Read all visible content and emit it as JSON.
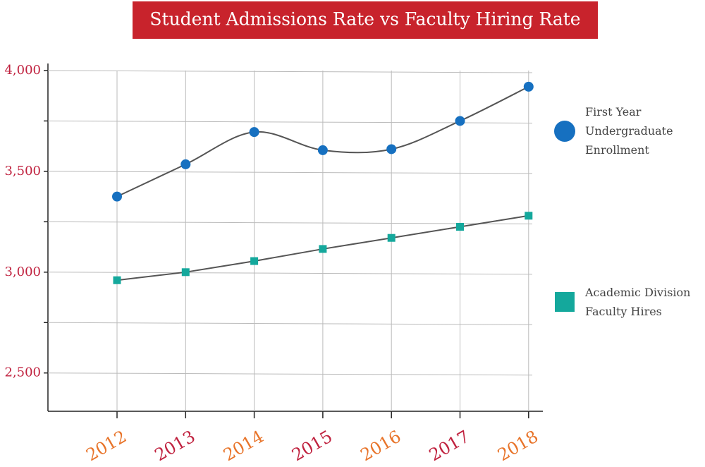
{
  "chart_data": {
    "type": "line",
    "title": "Student Admissions Rate vs Faculty Hiring Rate",
    "title_background": "#c8232c",
    "categories": [
      "2012",
      "2013",
      "2014",
      "2015",
      "2016",
      "2017",
      "2018"
    ],
    "xtick_colors": [
      "#e8742a",
      "#c0223f",
      "#e8742a",
      "#c0223f",
      "#e8742a",
      "#c0223f",
      "#e8742a"
    ],
    "series": [
      {
        "name": "First Year Undergraduate Enrollment",
        "color": "#1670c0",
        "marker": "circle",
        "smooth": true,
        "values": [
          3375,
          3535,
          3695,
          3605,
          3610,
          3750,
          3920
        ]
      },
      {
        "name": "Academic Division Faculty Hires",
        "color": "#14a89c",
        "marker": "square",
        "smooth": false,
        "values": [
          2960,
          3000,
          3055,
          3115,
          3170,
          3225,
          3280
        ]
      }
    ],
    "ylim": [
      2310,
      4035
    ],
    "yticks": [
      {
        "value": 2500,
        "label": "2,500"
      },
      {
        "value": 3000,
        "label": "3,000"
      },
      {
        "value": 3500,
        "label": "3,500"
      },
      {
        "value": 4000,
        "label": "4,000"
      }
    ],
    "yminor": [
      2750,
      3250,
      3750
    ],
    "grid": true
  }
}
